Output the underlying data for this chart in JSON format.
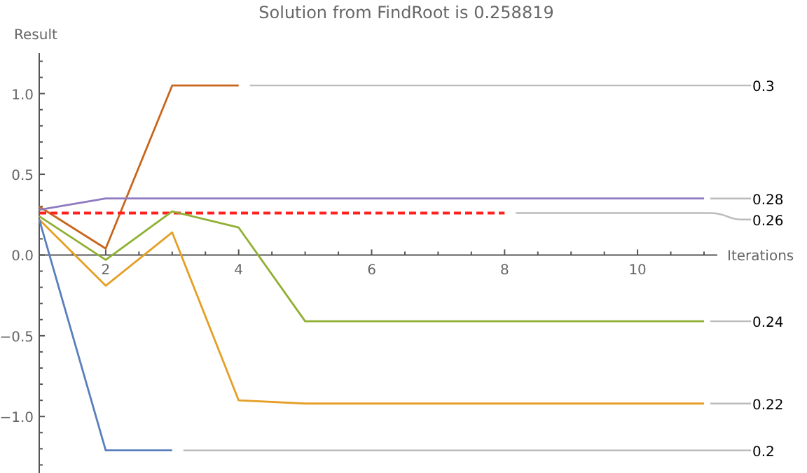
{
  "chart_data": {
    "type": "line",
    "title": "Solution from FindRoot is 0.258819",
    "xlabel": "Iterations",
    "ylabel": "Result",
    "xlim": [
      1,
      11.2
    ],
    "ylim": [
      -1.35,
      1.25
    ],
    "xticks": [
      {
        "value": 1.5,
        "label": null
      },
      2,
      {
        "value": 2.5,
        "label": null
      },
      {
        "value": 3,
        "label": null
      },
      {
        "value": 3.5,
        "label": null
      },
      4,
      {
        "value": 4.5,
        "label": null
      },
      {
        "value": 5,
        "label": null
      },
      {
        "value": 5.5,
        "label": null
      },
      6,
      {
        "value": 6.5,
        "label": null
      },
      {
        "value": 7,
        "label": null
      },
      {
        "value": 7.5,
        "label": null
      },
      8,
      {
        "value": 8.5,
        "label": null
      },
      {
        "value": 9,
        "label": null
      },
      {
        "value": 9.5,
        "label": null
      },
      10,
      {
        "value": 10.5,
        "label": null
      },
      {
        "value": 11,
        "label": null
      }
    ],
    "yticks": [
      {
        "value": -1.3,
        "label": null
      },
      {
        "value": -1.2,
        "label": null
      },
      {
        "value": -1.1,
        "label": null
      },
      {
        "value": -1,
        "label": "−1.0"
      },
      {
        "value": -0.9,
        "label": null
      },
      {
        "value": -0.8,
        "label": null
      },
      {
        "value": -0.7,
        "label": null
      },
      {
        "value": -0.6,
        "label": null
      },
      {
        "value": -0.5,
        "label": "−0.5"
      },
      {
        "value": -0.4,
        "label": null
      },
      {
        "value": -0.3,
        "label": null
      },
      {
        "value": -0.2,
        "label": null
      },
      {
        "value": -0.1,
        "label": null
      },
      {
        "value": 0,
        "label": "0.0"
      },
      {
        "value": 0.1,
        "label": null
      },
      {
        "value": 0.2,
        "label": null
      },
      {
        "value": 0.3,
        "label": null
      },
      {
        "value": 0.4,
        "label": null
      },
      {
        "value": 0.5,
        "label": "0.5"
      },
      {
        "value": 0.6,
        "label": null
      },
      {
        "value": 0.7,
        "label": null
      },
      {
        "value": 0.8,
        "label": null
      },
      {
        "value": 0.9,
        "label": null
      },
      {
        "value": 1,
        "label": "1.0"
      },
      {
        "value": 1.1,
        "label": null
      },
      {
        "value": 1.2,
        "label": null
      }
    ],
    "grid": false,
    "series": [
      {
        "name": "0.3",
        "color": "#c8661c",
        "x": [
          1,
          2,
          3,
          4
        ],
        "values": [
          0.3,
          0.04,
          1.05,
          1.05
        ]
      },
      {
        "name": "0.28",
        "color": "#8f7ac0",
        "x": [
          1,
          2,
          3,
          4,
          5,
          6,
          7,
          8,
          9,
          10,
          11
        ],
        "values": [
          0.28,
          0.35,
          0.35,
          0.35,
          0.35,
          0.35,
          0.35,
          0.35,
          0.35,
          0.35,
          0.35
        ]
      },
      {
        "name": "0.26",
        "color": "#ff2020",
        "line_style": "dashed",
        "x": [
          1,
          2,
          3,
          4,
          5,
          6,
          7,
          8
        ],
        "values": [
          0.26,
          0.26,
          0.26,
          0.26,
          0.26,
          0.26,
          0.26,
          0.26
        ]
      },
      {
        "name": "0.24",
        "color": "#8fb032",
        "x": [
          1,
          2,
          3,
          4,
          5,
          6,
          7,
          8,
          9,
          10,
          11
        ],
        "values": [
          0.24,
          -0.03,
          0.27,
          0.17,
          -0.41,
          -0.41,
          -0.41,
          -0.41,
          -0.41,
          -0.41,
          -0.41
        ]
      },
      {
        "name": "0.22",
        "color": "#e59f27",
        "x": [
          1,
          2,
          3,
          4,
          5,
          6,
          7,
          8,
          9,
          10,
          11
        ],
        "values": [
          0.22,
          -0.19,
          0.14,
          -0.9,
          -0.92,
          -0.92,
          -0.92,
          -0.92,
          -0.92,
          -0.92,
          -0.92
        ]
      },
      {
        "name": "0.2",
        "color": "#5a7fbd",
        "x": [
          1,
          2,
          3
        ],
        "values": [
          0.22,
          -1.21,
          -1.21
        ]
      }
    ]
  }
}
